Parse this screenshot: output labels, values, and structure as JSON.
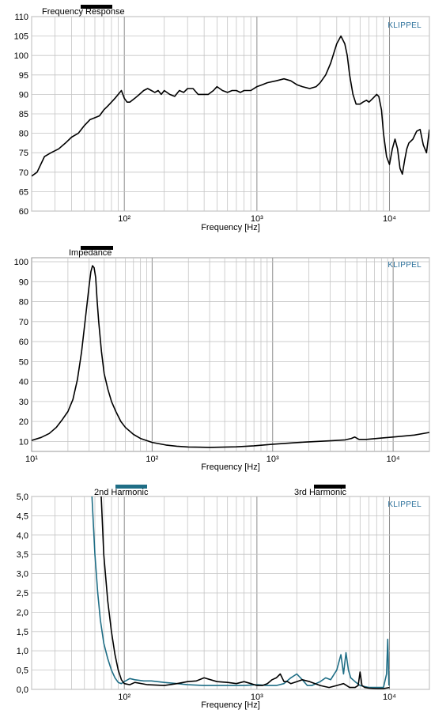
{
  "brand": "KLIPPEL",
  "chart_data": [
    {
      "type": "line",
      "legend": [
        "Frequency Response"
      ],
      "xlabel": "Frequency  [Hz]",
      "ylabel": "",
      "xscale": "log",
      "xlim": [
        20,
        20000
      ],
      "ylim": [
        60,
        110
      ],
      "yticks": [
        60,
        65,
        70,
        75,
        80,
        85,
        90,
        95,
        100,
        105,
        110
      ],
      "xticks": [
        "10²",
        "10³",
        "10⁴"
      ],
      "grid": true,
      "series": [
        {
          "color": "#000000",
          "x": [
            20,
            22,
            25,
            28,
            32,
            36,
            40,
            45,
            50,
            55,
            60,
            65,
            70,
            75,
            80,
            85,
            90,
            95,
            100,
            105,
            110,
            120,
            130,
            140,
            150,
            160,
            170,
            180,
            190,
            200,
            220,
            240,
            260,
            280,
            300,
            330,
            360,
            400,
            430,
            470,
            500,
            550,
            600,
            650,
            700,
            750,
            800,
            900,
            1000,
            1100,
            1200,
            1400,
            1600,
            1800,
            2000,
            2200,
            2500,
            2800,
            3000,
            3300,
            3600,
            4000,
            4300,
            4600,
            4800,
            5000,
            5300,
            5600,
            6000,
            6300,
            6700,
            7000,
            7500,
            8000,
            8300,
            8700,
            9000,
            9500,
            10000,
            10500,
            11000,
            11500,
            12000,
            12500,
            13000,
            13500,
            14000,
            15000,
            16000,
            17000,
            18000,
            19000,
            20000
          ],
          "y": [
            69,
            70,
            74,
            75,
            76,
            77.5,
            79,
            80,
            82,
            83.5,
            84,
            84.5,
            86,
            87,
            88,
            89,
            90,
            91,
            89,
            88,
            88,
            89,
            90,
            91,
            91.5,
            91,
            90.5,
            91,
            90,
            91,
            90,
            89.5,
            91,
            90.5,
            91.5,
            91.5,
            90,
            90,
            90,
            91,
            92,
            91,
            90.5,
            91,
            91,
            90.5,
            91,
            91,
            92,
            92.5,
            93,
            93.5,
            94,
            93.5,
            92.5,
            92,
            91.5,
            92,
            93,
            95,
            98,
            103,
            105,
            103,
            100,
            95,
            90,
            87.5,
            87.5,
            88,
            88.5,
            88,
            89,
            90,
            89.5,
            86,
            80,
            74,
            72,
            76,
            78.5,
            76,
            71,
            69.5,
            73,
            76,
            77.5,
            78.5,
            80.5,
            81,
            77,
            75,
            81
          ]
        }
      ]
    },
    {
      "type": "line",
      "legend": [
        "Impedance"
      ],
      "xlabel": "Frequency  [Hz]",
      "ylabel": "",
      "xscale": "log",
      "xlim": [
        10,
        20000
      ],
      "ylim": [
        5,
        102
      ],
      "yticks": [
        10,
        20,
        30,
        40,
        50,
        60,
        70,
        80,
        90,
        100
      ],
      "xticks": [
        "10¹",
        "10²",
        "10³",
        "10⁴"
      ],
      "grid": true,
      "series": [
        {
          "color": "#000000",
          "x": [
            10,
            12,
            14,
            16,
            18,
            20,
            22,
            24,
            26,
            28,
            30,
            31,
            32,
            33,
            34,
            35,
            36,
            38,
            40,
            43,
            46,
            50,
            55,
            60,
            70,
            80,
            100,
            130,
            160,
            200,
            300,
            500,
            700,
            1000,
            1500,
            2000,
            3000,
            4000,
            4500,
            4800,
            5200,
            6000,
            8000,
            10000,
            15000,
            20000
          ],
          "y": [
            10.5,
            12,
            14,
            17,
            21,
            25,
            31,
            41,
            55,
            72,
            88,
            95,
            98,
            97,
            92,
            80,
            70,
            55,
            44,
            36,
            30,
            25,
            20,
            17,
            13.5,
            11.5,
            9.5,
            8.2,
            7.6,
            7.2,
            7.0,
            7.3,
            7.8,
            8.6,
            9.3,
            9.8,
            10.3,
            10.8,
            11.5,
            12.2,
            11.0,
            11.0,
            11.7,
            12.2,
            13.2,
            14.5
          ]
        }
      ]
    },
    {
      "type": "line",
      "legend": [
        "2nd Harmonic",
        "3rd Harmonic"
      ],
      "xlabel": "Frequency  [Hz]",
      "ylabel": "",
      "xscale": "log",
      "xlim": [
        20,
        20000
      ],
      "ylim": [
        0,
        5
      ],
      "yticks": [
        "0,0",
        "0,5",
        "1,0",
        "1,5",
        "2,0",
        "2,5",
        "3,0",
        "3,5",
        "4,0",
        "4,5",
        "5,0"
      ],
      "xticks": [
        "10²",
        "10³",
        "10⁴"
      ],
      "grid": true,
      "series": [
        {
          "name": "2nd Harmonic",
          "color": "#1f6e86",
          "x": [
            57,
            60,
            63,
            66,
            70,
            75,
            80,
            85,
            90,
            95,
            100,
            110,
            120,
            140,
            160,
            200,
            250,
            300,
            400,
            500,
            600,
            700,
            800,
            1000,
            1200,
            1400,
            1600,
            1800,
            2000,
            2200,
            2400,
            2600,
            3000,
            3300,
            3600,
            4000,
            4300,
            4500,
            4700,
            4900,
            5100,
            5500,
            6000,
            7000,
            8000,
            9000,
            9500,
            9700,
            9900
          ],
          "y": [
            5.0,
            3.5,
            2.5,
            1.8,
            1.2,
            0.8,
            0.5,
            0.3,
            0.18,
            0.15,
            0.2,
            0.28,
            0.25,
            0.22,
            0.22,
            0.18,
            0.15,
            0.12,
            0.1,
            0.1,
            0.1,
            0.1,
            0.1,
            0.12,
            0.1,
            0.1,
            0.15,
            0.3,
            0.4,
            0.25,
            0.1,
            0.1,
            0.2,
            0.3,
            0.25,
            0.5,
            0.9,
            0.4,
            0.95,
            0.5,
            0.3,
            0.2,
            0.1,
            0.05,
            0.05,
            0.05,
            0.4,
            1.3,
            0.1
          ]
        },
        {
          "name": "3rd Harmonic",
          "color": "#000000",
          "x": [
            67,
            70,
            75,
            80,
            85,
            90,
            95,
            100,
            110,
            120,
            150,
            200,
            250,
            300,
            350,
            400,
            500,
            600,
            700,
            800,
            900,
            1000,
            1100,
            1200,
            1300,
            1400,
            1500,
            1600,
            1700,
            1800,
            2000,
            2200,
            2500,
            3000,
            3500,
            4000,
            4500,
            5000,
            5500,
            5800,
            6000,
            6200,
            6500,
            7000,
            8000,
            9000,
            10000
          ],
          "y": [
            5.0,
            3.5,
            2.3,
            1.5,
            0.9,
            0.5,
            0.25,
            0.15,
            0.12,
            0.18,
            0.12,
            0.1,
            0.15,
            0.2,
            0.22,
            0.3,
            0.2,
            0.18,
            0.15,
            0.2,
            0.15,
            0.1,
            0.1,
            0.15,
            0.25,
            0.3,
            0.4,
            0.2,
            0.2,
            0.15,
            0.2,
            0.25,
            0.2,
            0.1,
            0.05,
            0.1,
            0.15,
            0.05,
            0.05,
            0.1,
            0.45,
            0.1,
            0.05,
            0.03,
            0.02,
            0.02,
            0.05
          ]
        }
      ]
    }
  ]
}
